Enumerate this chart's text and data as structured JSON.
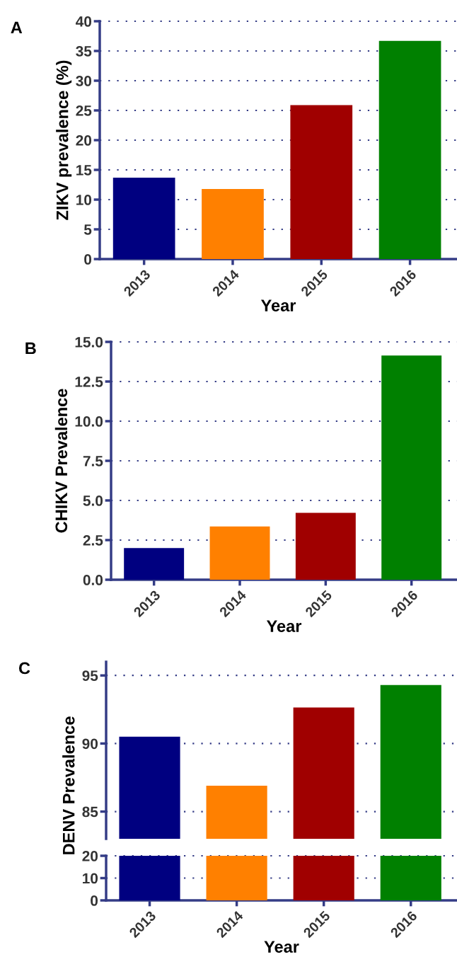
{
  "chart_data": [
    {
      "type": "bar",
      "title": "A",
      "xlabel": "Year",
      "ylabel": "ZIKV prevalence (%)",
      "categories": [
        "2013",
        "2014",
        "2015",
        "2016"
      ],
      "values": [
        13.7,
        11.8,
        25.9,
        36.7
      ],
      "colors": [
        "#000080",
        "#ff8000",
        "#a00000",
        "#008000"
      ],
      "ylim": [
        0,
        40
      ],
      "yticks": [
        0,
        5,
        10,
        15,
        20,
        25,
        30,
        35,
        40
      ],
      "grid": "y"
    },
    {
      "type": "bar",
      "title": "B",
      "xlabel": "Year",
      "ylabel": "CHIKV Prevalence",
      "categories": [
        "2013",
        "2014",
        "2015",
        "2016"
      ],
      "values": [
        2.0,
        3.36,
        4.22,
        14.14
      ],
      "colors": [
        "#000080",
        "#ff8000",
        "#a00000",
        "#008000"
      ],
      "ylim": [
        0,
        15
      ],
      "yticks": [
        {
          "value": 0,
          "label": "0.0"
        },
        {
          "value": 2.5,
          "label": "2.5"
        },
        {
          "value": 5,
          "label": "5.0"
        },
        {
          "value": 7.5,
          "label": "7.5"
        },
        {
          "value": 10,
          "label": "10.0"
        },
        {
          "value": 12.5,
          "label": "12.5"
        },
        {
          "value": 15,
          "label": "15.0"
        }
      ],
      "grid": "y"
    },
    {
      "type": "bar",
      "title": "C",
      "ylabel": "DENV Prevalence",
      "categories": [
        "2013",
        "2014",
        "2015",
        "2016"
      ],
      "values": [
        90.5,
        86.9,
        92.65,
        94.3
      ],
      "colors": [
        "#000080",
        "#ff8000",
        "#a00000",
        "#008000"
      ],
      "ylim": [
        83,
        96
      ],
      "yticks": [
        85,
        90,
        95
      ],
      "grid": "y",
      "tick_labels": "y"
    },
    {
      "type": "bar",
      "xlabel": "Year",
      "categories": [
        "2013",
        "2014",
        "2015",
        "2016"
      ],
      "values": [
        20,
        20,
        20,
        20
      ],
      "colors": [
        "#000080",
        "#ff8000",
        "#a00000",
        "#008000"
      ],
      "ylim": [
        0,
        20
      ],
      "yticks": [
        0,
        10,
        20
      ],
      "ref_lines": [
        {
          "axis": "y",
          "value": 10,
          "color": "#343c86",
          "line_style": "dotted"
        },
        {
          "axis": "y",
          "value": 20,
          "color": "#343c86",
          "line_style": "dotted"
        }
      ]
    }
  ]
}
